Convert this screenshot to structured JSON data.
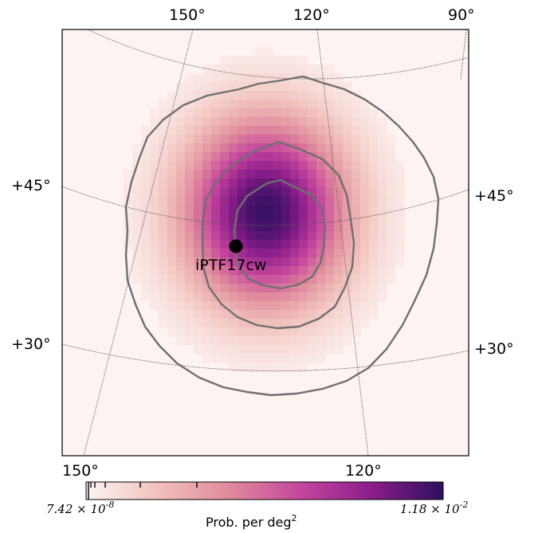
{
  "chart_data": {
    "type": "heatmap",
    "title": "",
    "projection": "gnomonic sky map",
    "top_ra_labels": [
      "150°",
      "120°",
      "90°"
    ],
    "bottom_ra_labels": [
      "150°",
      "120°"
    ],
    "left_dec_labels": [
      "+45°",
      "+30°"
    ],
    "right_dec_labels": [
      "+45°",
      "+30°"
    ],
    "ra_range": [
      165,
      95
    ],
    "dec_range": [
      18,
      60
    ],
    "peak_position": {
      "ra": 130,
      "dec": 42
    },
    "contours": [
      "inner",
      "middle",
      "outer"
    ],
    "marker": {
      "label": "iPTF17cw",
      "ra": 136,
      "dec": 40
    },
    "colorbar": {
      "min_mantissa": "7.42",
      "min_exponent": "-8",
      "max_mantissa": "1.18",
      "max_exponent": "-2",
      "title_base": "Prob. per deg",
      "title_sup": "2",
      "colors": [
        "#fdf4f2",
        "#f1c1bd",
        "#e08a9c",
        "#c5469d",
        "#8b1d8a",
        "#2e0f5e"
      ]
    },
    "grid": true
  }
}
